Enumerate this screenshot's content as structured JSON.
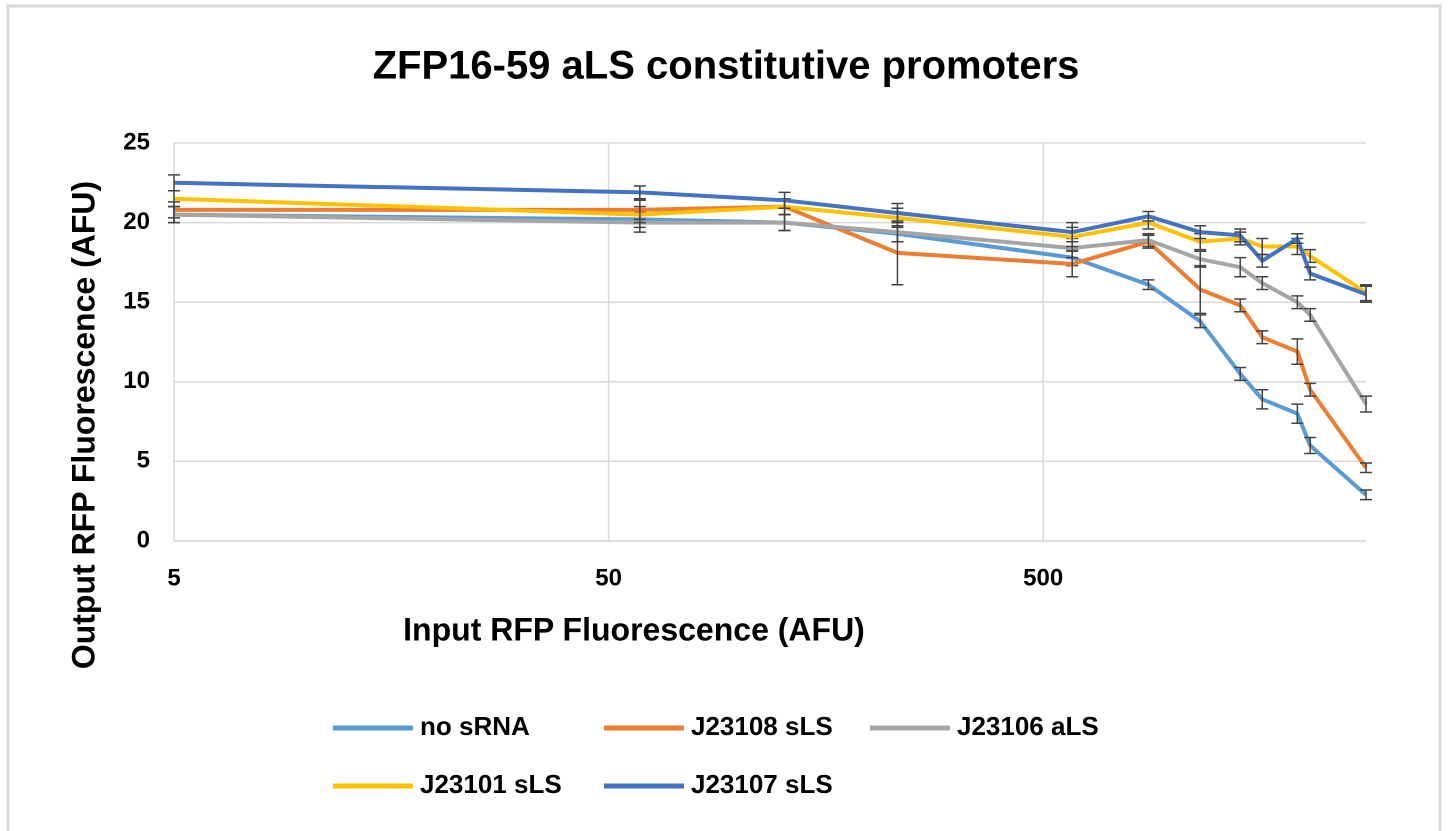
{
  "chart_data": {
    "type": "line",
    "title": "ZFP16-59 aLS constitutive promoters",
    "xlabel": "Input RFP Fluorescence (AFU)",
    "ylabel": "Output RFP Fluorescence (AFU)",
    "x": [
      5,
      59,
      127,
      231,
      583,
      873,
      1149,
      1420,
      1596,
      1922,
      2057,
      2765
    ],
    "xlim": [
      5,
      2765
    ],
    "xticks": [
      5,
      50,
      500
    ],
    "xscale": "log",
    "ylim": [
      0,
      25
    ],
    "yticks": [
      0,
      5,
      10,
      15,
      20,
      25
    ],
    "grid": true,
    "legend": "bottom",
    "series": [
      {
        "name": "no sRNA",
        "color": "#5b9bd5",
        "values": [
          20.5,
          20.2,
          20.0,
          19.3,
          17.8,
          16.1,
          13.8,
          10.5,
          8.9,
          8.0,
          6.0,
          2.9
        ],
        "errors": [
          0.5,
          0.5,
          0.5,
          0.5,
          0.5,
          0.3,
          0.4,
          0.4,
          0.6,
          0.6,
          0.5,
          0.3
        ]
      },
      {
        "name": "J23108 sLS",
        "color": "#ed7d31",
        "values": [
          20.8,
          20.8,
          21.0,
          18.1,
          17.4,
          18.8,
          15.8,
          14.8,
          12.8,
          11.9,
          9.5,
          4.6
        ],
        "errors": [
          0.5,
          0.6,
          0.5,
          2.0,
          0.8,
          0.4,
          1.5,
          0.4,
          0.4,
          0.8,
          0.4,
          0.3
        ]
      },
      {
        "name": "J23106 aLS",
        "color": "#a5a5a5",
        "values": [
          20.5,
          20.0,
          20.0,
          19.4,
          18.4,
          18.9,
          17.7,
          17.2,
          16.2,
          15.0,
          14.2,
          8.6
        ],
        "errors": [
          0.5,
          0.6,
          0.5,
          0.6,
          0.6,
          0.4,
          0.5,
          0.6,
          0.4,
          0.4,
          0.4,
          0.5
        ]
      },
      {
        "name": "J23101 sLS",
        "color": "#ffc000",
        "values": [
          21.5,
          20.5,
          21.0,
          20.3,
          19.1,
          20.0,
          18.8,
          19.0,
          18.5,
          18.5,
          17.9,
          15.6
        ],
        "errors": [
          0.5,
          0.5,
          0.5,
          0.6,
          0.6,
          0.4,
          0.5,
          0.4,
          0.5,
          0.5,
          0.4,
          0.5
        ]
      },
      {
        "name": "J23107 sLS",
        "color": "#4472c4",
        "values": [
          22.5,
          21.9,
          21.4,
          20.6,
          19.4,
          20.4,
          19.4,
          19.2,
          17.6,
          19.0,
          16.8,
          15.5
        ],
        "errors": [
          0.5,
          0.4,
          0.5,
          0.6,
          0.6,
          0.3,
          0.4,
          0.4,
          0.4,
          0.3,
          0.4,
          0.5
        ]
      }
    ]
  }
}
